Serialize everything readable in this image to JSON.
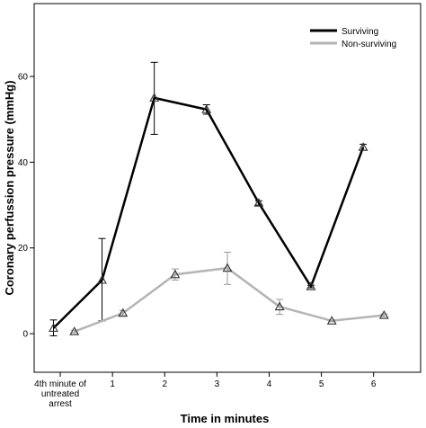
{
  "chart_data": {
    "type": "line",
    "xlabel": "Time in minutes",
    "ylabel": "Coronary perfussion pressure (mmHg)",
    "ylim": [
      -9,
      77
    ],
    "yticks": [
      0,
      20,
      40,
      60
    ],
    "xlim": [
      -0.5,
      6.9
    ],
    "xticks": [
      {
        "x": 0,
        "label_lines": [
          "4th minute of",
          "untreated",
          "arrest"
        ]
      },
      {
        "x": 1,
        "label_lines": [
          "1"
        ]
      },
      {
        "x": 2,
        "label_lines": [
          "2"
        ]
      },
      {
        "x": 3,
        "label_lines": [
          "3"
        ]
      },
      {
        "x": 4,
        "label_lines": [
          "4"
        ]
      },
      {
        "x": 5,
        "label_lines": [
          "5"
        ]
      },
      {
        "x": 6,
        "label_lines": [
          "6"
        ]
      }
    ],
    "grid": false,
    "legend_position": "top-right",
    "series": [
      {
        "name": "Surviving",
        "color": "#000000",
        "line_width": 2.5,
        "marker": "triangle",
        "points": [
          {
            "x": -0.13,
            "y": 1.3,
            "err_low": -0.5,
            "err_high": 3.2
          },
          {
            "x": 0.8,
            "y": 12.5,
            "err_low": 3.0,
            "err_high": 22.2
          },
          {
            "x": 1.8,
            "y": 55.0,
            "err_low": 46.5,
            "err_high": 63.3
          },
          {
            "x": 2.8,
            "y": 52.3,
            "err_low": 51.2,
            "err_high": 53.4
          },
          {
            "x": 3.8,
            "y": 30.5,
            "err_low": 30.0,
            "err_high": 31.0
          },
          {
            "x": 4.8,
            "y": 11.0,
            "err_low": 10.7,
            "err_high": 11.3
          },
          {
            "x": 5.8,
            "y": 43.5,
            "err_low": 42.8,
            "err_high": 44.2
          }
        ]
      },
      {
        "name": "Non-surviving",
        "color": "#b4b4b4",
        "line_width": 2.5,
        "marker": "triangle",
        "points": [
          {
            "x": 0.27,
            "y": 0.5,
            "err_low": 0.2,
            "err_high": 0.8
          },
          {
            "x": 1.2,
            "y": 4.8,
            "err_low": 4.2,
            "err_high": 5.4
          },
          {
            "x": 2.2,
            "y": 13.8,
            "err_low": 12.5,
            "err_high": 15.1
          },
          {
            "x": 3.2,
            "y": 15.3,
            "err_low": 11.5,
            "err_high": 19.0
          },
          {
            "x": 4.2,
            "y": 6.3,
            "err_low": 4.5,
            "err_high": 8.0
          },
          {
            "x": 5.2,
            "y": 3.0,
            "err_low": 2.8,
            "err_high": 3.2
          },
          {
            "x": 6.2,
            "y": 4.3,
            "err_low": 4.0,
            "err_high": 4.6
          }
        ]
      }
    ]
  }
}
